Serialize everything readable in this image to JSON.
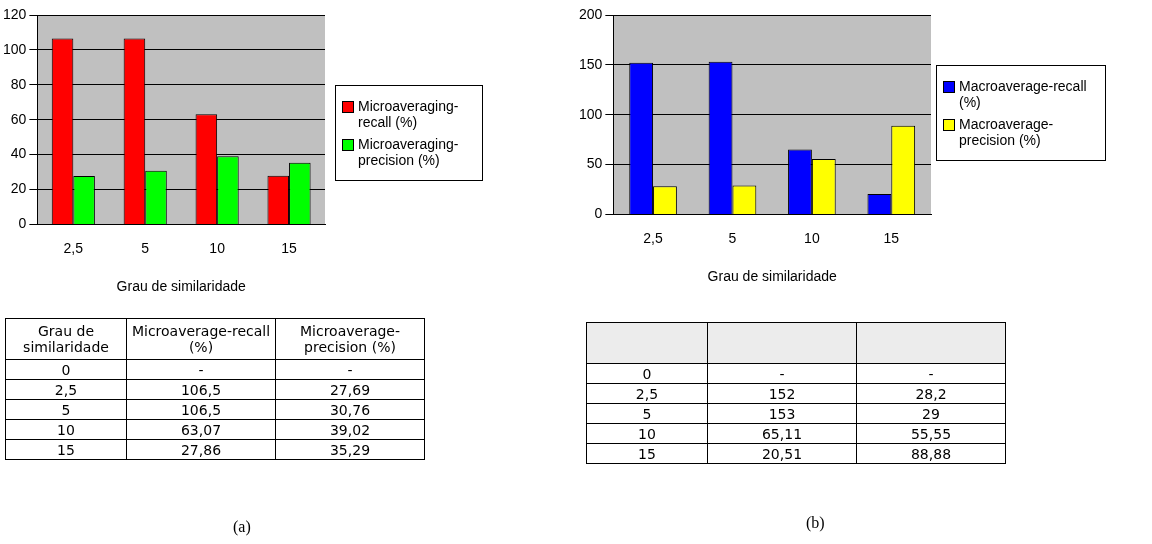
{
  "chart_data": [
    {
      "type": "bar",
      "xlabel": "Grau de similaridade",
      "categories": [
        "2,5",
        "5",
        "10",
        "15"
      ],
      "ylim": [
        0,
        120
      ],
      "yticks": [
        0,
        20,
        40,
        60,
        80,
        100,
        120
      ],
      "grid": "y",
      "legend": "right",
      "series": [
        {
          "name": "Microaveraging-recall (%)",
          "color": "#ff0000",
          "values": [
            106.5,
            106.5,
            63.07,
            27.86
          ]
        },
        {
          "name": "Microaveraging-precision (%)",
          "color": "#00ff00",
          "values": [
            27.69,
            30.76,
            39.02,
            35.29
          ]
        }
      ],
      "annotations": [
        "Grau de similaridade",
        "Microaverage-recall (%)",
        "Microaverage-precision (%)",
        "0",
        "-",
        "-",
        "106,5",
        "27,69",
        "106,5",
        "30,76",
        "63,07",
        "39,02",
        "27,86",
        "35,29",
        "(a)"
      ]
    },
    {
      "type": "bar",
      "xlabel": "Grau de similaridade",
      "categories": [
        "2,5",
        "5",
        "10",
        "15"
      ],
      "ylim": [
        0,
        200
      ],
      "yticks": [
        0,
        50,
        100,
        150,
        200
      ],
      "grid": "y",
      "legend": "right",
      "series": [
        {
          "name": "Macroaverage-recall (%)",
          "color": "#0000ff",
          "values": [
            152,
            153,
            65.11,
            20.51
          ]
        },
        {
          "name": "Macroaverage-precision (%)",
          "color": "#ffff00",
          "values": [
            28.2,
            29,
            55.55,
            88.88
          ]
        }
      ],
      "annotations": [
        "0",
        "-",
        "-",
        "152",
        "28,2",
        "153",
        "29",
        "65,11",
        "55,55",
        "20,51",
        "88,88",
        "(b)"
      ]
    }
  ]
}
